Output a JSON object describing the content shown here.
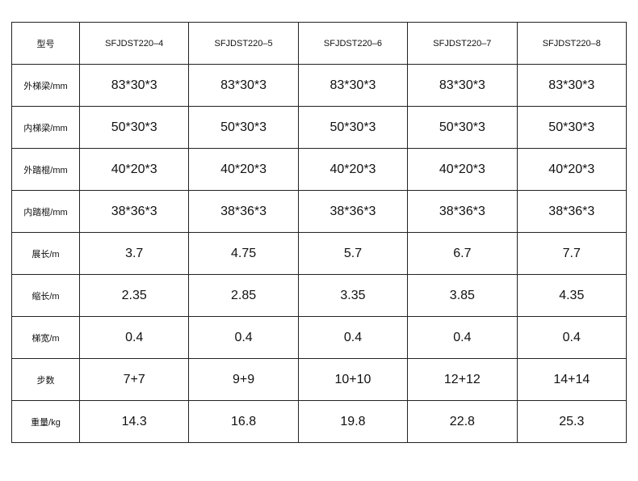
{
  "table": {
    "header": [
      "型号",
      "SFJDST220–4",
      "SFJDST220–5",
      "SFJDST220–6",
      "SFJDST220–7",
      "SFJDST220–8"
    ],
    "rows": [
      [
        "外梯梁/mm",
        "83*30*3",
        "83*30*3",
        "83*30*3",
        "83*30*3",
        "83*30*3"
      ],
      [
        "内梯梁/mm",
        "50*30*3",
        "50*30*3",
        "50*30*3",
        "50*30*3",
        "50*30*3"
      ],
      [
        "外踏棍/mm",
        "40*20*3",
        "40*20*3",
        "40*20*3",
        "40*20*3",
        "40*20*3"
      ],
      [
        "内踏棍/mm",
        "38*36*3",
        "38*36*3",
        "38*36*3",
        "38*36*3",
        "38*36*3"
      ],
      [
        "展长/m",
        "3.7",
        "4.75",
        "5.7",
        "6.7",
        "7.7"
      ],
      [
        "缩长/m",
        "2.35",
        "2.85",
        "3.35",
        "3.85",
        "4.35"
      ],
      [
        "梯宽/m",
        "0.4",
        "0.4",
        "0.4",
        "0.4",
        "0.4"
      ],
      [
        "步数",
        "7+7",
        "9+9",
        "10+10",
        "12+12",
        "14+14"
      ],
      [
        "重量/kg",
        "14.3",
        "16.8",
        "19.8",
        "22.8",
        "25.3"
      ]
    ]
  }
}
